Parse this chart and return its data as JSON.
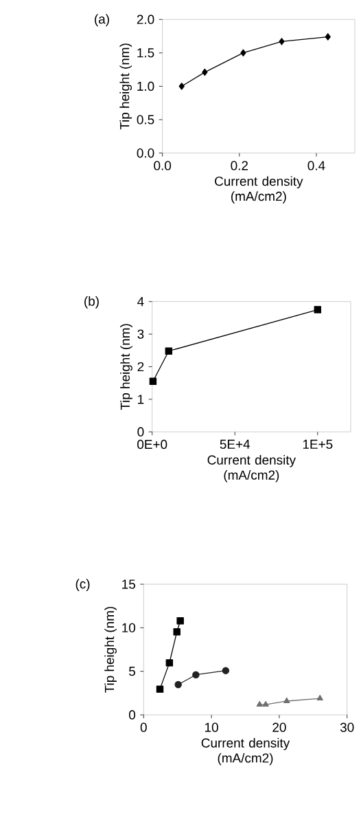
{
  "chart_data": [
    {
      "type": "line",
      "title": "(a)",
      "xlabel": "Current density (mA/cm2)",
      "ylabel": "Tip height (nm)",
      "marker": "diamond",
      "x": [
        0.05,
        0.11,
        0.21,
        0.31,
        0.43
      ],
      "series": [
        {
          "color": "#000000",
          "values": [
            1.0,
            1.21,
            1.5,
            1.67,
            1.74
          ]
        }
      ],
      "xlim": [
        0,
        0.5
      ],
      "ylim": [
        0,
        2.0
      ],
      "xticks": [
        {
          "value": 0,
          "label": "0.0"
        },
        {
          "value": 0.2,
          "label": "0.2"
        },
        {
          "value": 0.4,
          "label": "0.4"
        }
      ],
      "yticks": [
        {
          "value": 0,
          "label": "0.0"
        },
        {
          "value": 0.5,
          "label": "0.5"
        },
        {
          "value": 1,
          "label": "1.0"
        },
        {
          "value": 1.5,
          "label": "1.5"
        },
        {
          "value": 2,
          "label": "2.0"
        }
      ]
    },
    {
      "type": "line",
      "title": "(b)",
      "xlabel": "Current density (mA/cm2)",
      "ylabel": "Tip height (nm)",
      "marker": "square",
      "x": [
        500,
        10000,
        100000
      ],
      "series": [
        {
          "color": "#000000",
          "values": [
            1.55,
            2.48,
            3.75
          ]
        }
      ],
      "xlim": [
        0,
        120000
      ],
      "ylim": [
        0,
        4
      ],
      "xticks": [
        {
          "value": 0,
          "label": "0E+0"
        },
        {
          "value": 50000,
          "label": "5E+4"
        },
        {
          "value": 100000,
          "label": "1E+5"
        }
      ],
      "yticks": [
        0,
        1,
        2,
        3,
        4
      ]
    },
    {
      "type": "line",
      "title": "(c)",
      "xlabel": "Current density (mA/cm2)",
      "ylabel": "Tip height (nm)",
      "series": [
        {
          "color": "#000000",
          "marker": "square",
          "x": [
            2.4,
            3.8,
            4.9,
            5.4
          ],
          "values": [
            2.95,
            5.97,
            9.53,
            10.8
          ]
        },
        {
          "color": "#222222",
          "marker": "circle",
          "x": [
            5.1,
            7.7,
            12.1
          ],
          "values": [
            3.47,
            4.6,
            5.08
          ]
        },
        {
          "color": "#707070",
          "marker": "triangle",
          "x": [
            17.1,
            18.0,
            21.1,
            26.0
          ],
          "values": [
            1.18,
            1.18,
            1.58,
            1.89
          ]
        }
      ],
      "xlim": [
        0,
        30
      ],
      "ylim": [
        0,
        15
      ],
      "xticks": [
        0,
        10,
        20,
        30
      ],
      "yticks": [
        0,
        5,
        10,
        15
      ]
    }
  ]
}
